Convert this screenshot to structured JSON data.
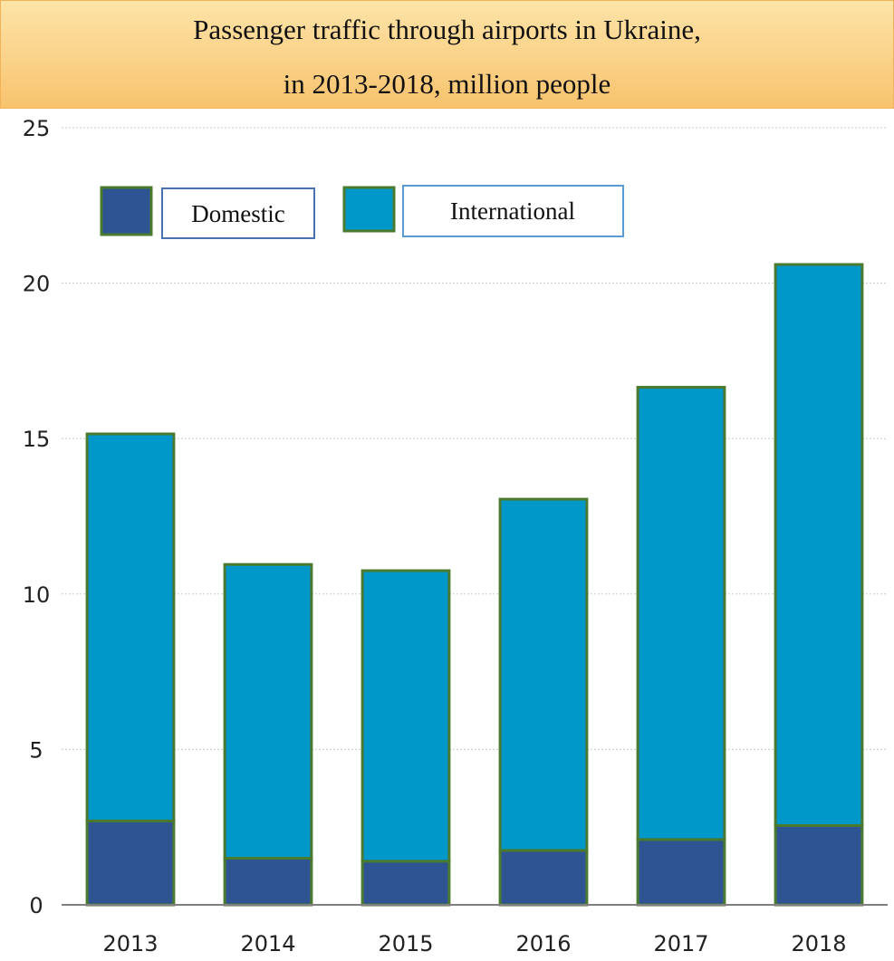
{
  "chart_data": {
    "type": "bar",
    "stacked": true,
    "title_lines": [
      "Passenger traffic through airports in Ukraine,",
      "in 2013-2018, million people"
    ],
    "categories": [
      "2013",
      "2014",
      "2015",
      "2016",
      "2017",
      "2018"
    ],
    "series": [
      {
        "name": "Domestic",
        "color": "#2e5494",
        "values": [
          2.7,
          1.5,
          1.4,
          1.75,
          2.1,
          2.55
        ]
      },
      {
        "name": "International",
        "color": "#0098c9",
        "values": [
          12.45,
          9.45,
          9.35,
          11.3,
          14.55,
          18.05
        ]
      }
    ],
    "bar_border_color": "#4a7a2e",
    "ylim": [
      0,
      25
    ],
    "yticks": [
      "0",
      "5",
      "10",
      "15",
      "20",
      "25"
    ],
    "grid": true,
    "legend_placement": "top-left"
  }
}
